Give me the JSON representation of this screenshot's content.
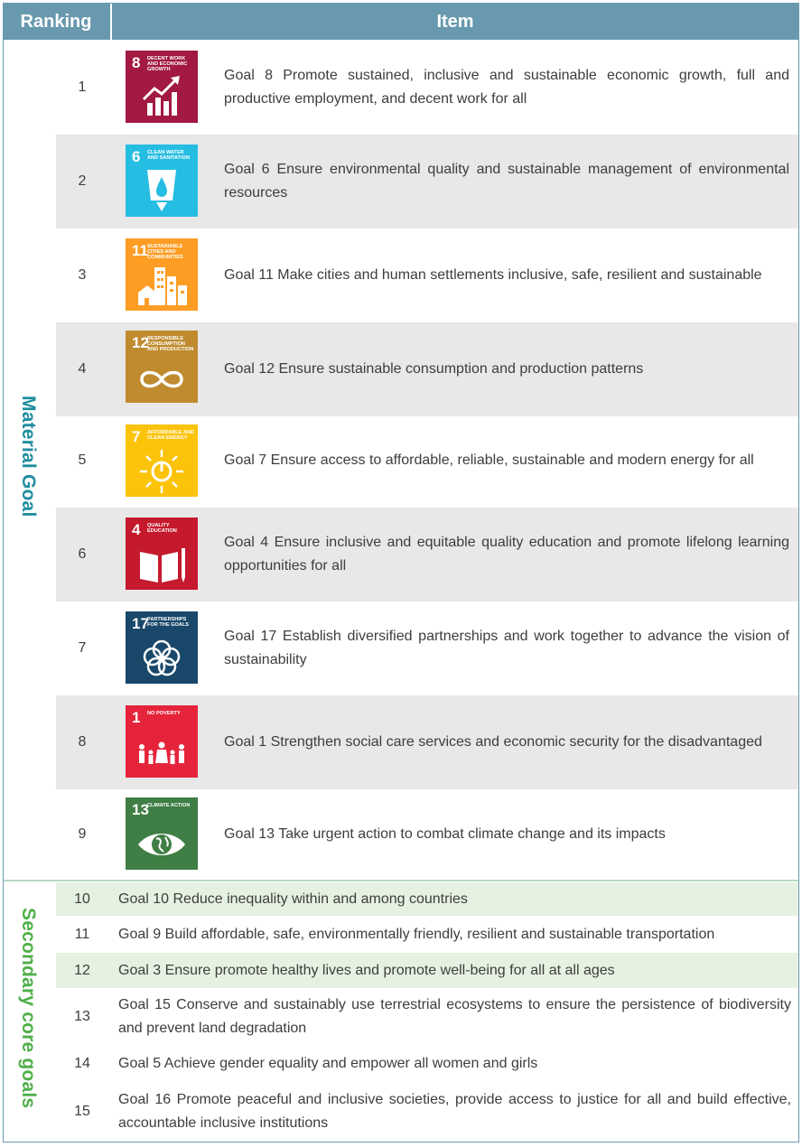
{
  "header": {
    "ranking": "Ranking",
    "item": "Item"
  },
  "groups": {
    "material": "Material Goal",
    "secondary": "Secondary core goals"
  },
  "material_goals": [
    {
      "rank": "1",
      "text": "Goal 8 Promote sustained, inclusive and sustainable economic growth, full and productive employment, and decent work for all",
      "icon": {
        "number": "8",
        "label": "DECENT WORK AND ECONOMIC GROWTH",
        "color": "#a21942",
        "name": "sdg8-growth-chart-icon"
      }
    },
    {
      "rank": "2",
      "text": "Goal 6 Ensure environmental quality and sustainable management of environmental resources",
      "icon": {
        "number": "6",
        "label": "CLEAN WATER AND SANITATION",
        "color": "#26bde2",
        "name": "sdg6-water-glass-icon"
      }
    },
    {
      "rank": "3",
      "text": "Goal 11 Make cities and human settlements inclusive, safe, resilient and sustainable",
      "icon": {
        "number": "11",
        "label": "SUSTAINABLE CITIES AND COMMUNITIES",
        "color": "#fd9d24",
        "name": "sdg11-buildings-icon"
      }
    },
    {
      "rank": "4",
      "text": "Goal 12 Ensure sustainable consumption and production patterns",
      "icon": {
        "number": "12",
        "label": "RESPONSIBLE CONSUMPTION AND PRODUCTION",
        "color": "#bf8b2e",
        "name": "sdg12-infinity-icon"
      }
    },
    {
      "rank": "5",
      "text": "Goal 7  Ensure access to affordable, reliable, sustainable and modern energy for all",
      "icon": {
        "number": "7",
        "label": "AFFORDABLE AND CLEAN ENERGY",
        "color": "#fcc30b",
        "name": "sdg7-sun-power-icon"
      }
    },
    {
      "rank": "6",
      "text": "Goal 4 Ensure inclusive and equitable quality education and promote lifelong learning opportunities for all",
      "icon": {
        "number": "4",
        "label": "QUALITY EDUCATION",
        "color": "#c5192d",
        "name": "sdg4-book-pencil-icon"
      }
    },
    {
      "rank": "7",
      "text": "Goal 17 Establish diversified partnerships and work together to advance the vision of sustainability",
      "icon": {
        "number": "17",
        "label": "PARTNERSHIPS FOR THE GOALS",
        "color": "#19486a",
        "name": "sdg17-rings-icon"
      }
    },
    {
      "rank": "8",
      "text": "Goal 1  Strengthen social care services and economic security for the disadvantaged",
      "icon": {
        "number": "1",
        "label": "NO POVERTY",
        "color": "#e5243b",
        "name": "sdg1-family-icon"
      }
    },
    {
      "rank": "9",
      "text": "Goal 13 Take urgent action to combat climate change and its impacts",
      "icon": {
        "number": "13",
        "label": "CLIMATE ACTION",
        "color": "#3f7e44",
        "name": "sdg13-eye-globe-icon"
      }
    }
  ],
  "secondary_goals": [
    {
      "rank": "10",
      "text": "Goal 10 Reduce inequality within and among countries"
    },
    {
      "rank": "11",
      "text": "Goal 9 Build affordable, safe, environmentally friendly, resilient and sustainable transportation"
    },
    {
      "rank": "12",
      "text": "Goal 3 Ensure promote healthy lives and promote well-being for all at all ages"
    },
    {
      "rank": "13",
      "text": "Goal 15 Conserve and sustainably use terrestrial ecosystems to ensure the persistence of biodiversity and prevent land degradation"
    },
    {
      "rank": "14",
      "text": "Goal 5 Achieve gender equality and empower all women and girls"
    },
    {
      "rank": "15",
      "text": "Goal 16 Promote peaceful and inclusive societies, provide access to justice for all and build effective, accountable inclusive institutions"
    }
  ],
  "colors": {
    "header": "#6999ae",
    "material_label": "#1f8ea0",
    "secondary_label": "#4fb04a",
    "material_shade": "#e8e8e9",
    "secondary_shade": "#e6f2e1"
  }
}
